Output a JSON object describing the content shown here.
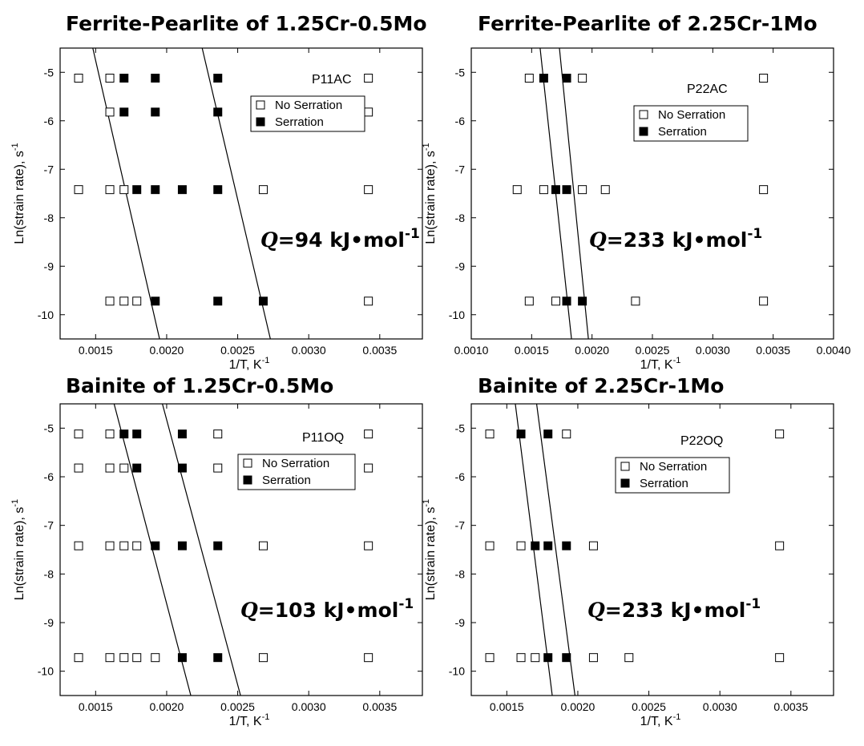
{
  "chart_data": [
    {
      "type": "scatter",
      "title": "Ferrite-Pearlite of 1.25Cr-0.5Mo",
      "sample_label": "P11AC",
      "activation_energy": {
        "symbol": "Q",
        "value": "=94 kJ•mol",
        "exponent": "-1"
      },
      "xlabel": "1/T, K",
      "xlabel_exp": "-1",
      "ylabel": "Ln(strain rate), s",
      "ylabel_exp": "-1",
      "xlim": [
        0.00125,
        0.0038
      ],
      "ylim": [
        -10.5,
        -4.5
      ],
      "xticks": [
        0.0015,
        0.002,
        0.0025,
        0.003,
        0.0035
      ],
      "xtick_labels": [
        "0.0015",
        "0.0020",
        "0.0025",
        "0.0030",
        "0.0035"
      ],
      "yticks": [
        -5,
        -6,
        -7,
        -8,
        -9,
        -10
      ],
      "ytick_labels": [
        "-5",
        "-6",
        "-7",
        "-8",
        "-9",
        "-10"
      ],
      "legend": {
        "position": "top-right",
        "entries": [
          "No Serration",
          "Serration"
        ]
      },
      "series": [
        {
          "name": "No Serration",
          "marker": "open-square",
          "points": [
            [
              0.00138,
              -5.12
            ],
            [
              0.0016,
              -5.12
            ],
            [
              0.00342,
              -5.12
            ],
            [
              0.0016,
              -5.82
            ],
            [
              0.00342,
              -5.82
            ],
            [
              0.00138,
              -7.42
            ],
            [
              0.0016,
              -7.42
            ],
            [
              0.0017,
              -7.42
            ],
            [
              0.00268,
              -7.42
            ],
            [
              0.00342,
              -7.42
            ],
            [
              0.0016,
              -9.72
            ],
            [
              0.0017,
              -9.72
            ],
            [
              0.00179,
              -9.72
            ],
            [
              0.00342,
              -9.72
            ]
          ]
        },
        {
          "name": "Serration",
          "marker": "filled-square",
          "points": [
            [
              0.0017,
              -5.12
            ],
            [
              0.00192,
              -5.12
            ],
            [
              0.00236,
              -5.12
            ],
            [
              0.0017,
              -5.82
            ],
            [
              0.00192,
              -5.82
            ],
            [
              0.00236,
              -5.82
            ],
            [
              0.00179,
              -7.42
            ],
            [
              0.00192,
              -7.42
            ],
            [
              0.00211,
              -7.42
            ],
            [
              0.00236,
              -7.42
            ],
            [
              0.00192,
              -9.72
            ],
            [
              0.00236,
              -9.72
            ],
            [
              0.00268,
              -9.72
            ]
          ]
        }
      ],
      "boundary_lines": [
        [
          [
            0.00148,
            -4.5
          ],
          [
            0.00195,
            -10.5
          ]
        ],
        [
          [
            0.00225,
            -4.5
          ],
          [
            0.00273,
            -10.5
          ]
        ]
      ]
    },
    {
      "type": "scatter",
      "title": "Ferrite-Pearlite of 2.25Cr-1Mo",
      "sample_label": "P22AC",
      "activation_energy": {
        "symbol": "Q",
        "value": "=233 kJ•mol",
        "exponent": "-1"
      },
      "xlabel": "1/T, K",
      "xlabel_exp": "-1",
      "ylabel": "Ln(strain rate), s",
      "ylabel_exp": "-1",
      "xlim": [
        0.001,
        0.004
      ],
      "ylim": [
        -10.5,
        -4.5
      ],
      "xticks": [
        0.001,
        0.0015,
        0.002,
        0.0025,
        0.003,
        0.0035,
        0.004
      ],
      "xtick_labels": [
        "0.0010",
        "0.0015",
        "0.0020",
        "0.0025",
        "0.0030",
        "0.0035",
        "0.0040"
      ],
      "yticks": [
        -5,
        -6,
        -7,
        -8,
        -9,
        -10
      ],
      "ytick_labels": [
        "-5",
        "-6",
        "-7",
        "-8",
        "-9",
        "-10"
      ],
      "legend": {
        "position": "top-right",
        "entries": [
          "No Serration",
          "Serration"
        ]
      },
      "series": [
        {
          "name": "No Serration",
          "marker": "open-square",
          "points": [
            [
              0.00148,
              -5.12
            ],
            [
              0.00192,
              -5.12
            ],
            [
              0.00342,
              -5.12
            ],
            [
              0.00138,
              -7.42
            ],
            [
              0.0016,
              -7.42
            ],
            [
              0.00192,
              -7.42
            ],
            [
              0.00211,
              -7.42
            ],
            [
              0.00342,
              -7.42
            ],
            [
              0.00148,
              -9.72
            ],
            [
              0.0017,
              -9.72
            ],
            [
              0.00236,
              -9.72
            ],
            [
              0.00342,
              -9.72
            ]
          ]
        },
        {
          "name": "Serration",
          "marker": "filled-square",
          "points": [
            [
              0.0016,
              -5.12
            ],
            [
              0.00179,
              -5.12
            ],
            [
              0.0017,
              -7.42
            ],
            [
              0.00179,
              -7.42
            ],
            [
              0.00179,
              -9.72
            ],
            [
              0.00192,
              -9.72
            ]
          ]
        }
      ],
      "boundary_lines": [
        [
          [
            0.00157,
            -4.5
          ],
          [
            0.00183,
            -10.5
          ]
        ],
        [
          [
            0.00173,
            -4.5
          ],
          [
            0.00197,
            -10.5
          ]
        ]
      ]
    },
    {
      "type": "scatter",
      "title": "Bainite of 1.25Cr-0.5Mo",
      "sample_label": "P11OQ",
      "activation_energy": {
        "symbol": "Q",
        "value": "=103 kJ•mol",
        "exponent": "-1"
      },
      "xlabel": "1/T, K",
      "xlabel_exp": "-1",
      "ylabel": "Ln(strain rate), s",
      "ylabel_exp": "-1",
      "xlim": [
        0.00125,
        0.0038
      ],
      "ylim": [
        -10.5,
        -4.5
      ],
      "xticks": [
        0.0015,
        0.002,
        0.0025,
        0.003,
        0.0035
      ],
      "xtick_labels": [
        "0.0015",
        "0.0020",
        "0.0025",
        "0.0030",
        "0.0035"
      ],
      "yticks": [
        -5,
        -6,
        -7,
        -8,
        -9,
        -10
      ],
      "ytick_labels": [
        "-5",
        "-6",
        "-7",
        "-8",
        "-9",
        "-10"
      ],
      "legend": {
        "position": "top-right",
        "entries": [
          "No Serration",
          "Serration"
        ]
      },
      "series": [
        {
          "name": "No Serration",
          "marker": "open-square",
          "points": [
            [
              0.00138,
              -5.12
            ],
            [
              0.0016,
              -5.12
            ],
            [
              0.00236,
              -5.12
            ],
            [
              0.00342,
              -5.12
            ],
            [
              0.00138,
              -5.82
            ],
            [
              0.0016,
              -5.82
            ],
            [
              0.0017,
              -5.82
            ],
            [
              0.00236,
              -5.82
            ],
            [
              0.00342,
              -5.82
            ],
            [
              0.00138,
              -7.42
            ],
            [
              0.0016,
              -7.42
            ],
            [
              0.0017,
              -7.42
            ],
            [
              0.00179,
              -7.42
            ],
            [
              0.00268,
              -7.42
            ],
            [
              0.00342,
              -7.42
            ],
            [
              0.00138,
              -9.72
            ],
            [
              0.0016,
              -9.72
            ],
            [
              0.0017,
              -9.72
            ],
            [
              0.00179,
              -9.72
            ],
            [
              0.00192,
              -9.72
            ],
            [
              0.00268,
              -9.72
            ],
            [
              0.00342,
              -9.72
            ]
          ]
        },
        {
          "name": "Serration",
          "marker": "filled-square",
          "points": [
            [
              0.0017,
              -5.12
            ],
            [
              0.00179,
              -5.12
            ],
            [
              0.00211,
              -5.12
            ],
            [
              0.00179,
              -5.82
            ],
            [
              0.00211,
              -5.82
            ],
            [
              0.00192,
              -7.42
            ],
            [
              0.00211,
              -7.42
            ],
            [
              0.00236,
              -7.42
            ],
            [
              0.00211,
              -9.72
            ],
            [
              0.00236,
              -9.72
            ]
          ]
        }
      ],
      "boundary_lines": [
        [
          [
            0.00163,
            -4.5
          ],
          [
            0.00217,
            -10.5
          ]
        ],
        [
          [
            0.00197,
            -4.5
          ],
          [
            0.00252,
            -10.5
          ]
        ]
      ]
    },
    {
      "type": "scatter",
      "title": "Bainite of 2.25Cr-1Mo",
      "sample_label": "P22OQ",
      "activation_energy": {
        "symbol": "Q",
        "value": "=233 kJ•mol",
        "exponent": "-1"
      },
      "xlabel": "1/T, K",
      "xlabel_exp": "-1",
      "ylabel": "Ln(strain rate), s",
      "ylabel_exp": "-1",
      "xlim": [
        0.00125,
        0.0038
      ],
      "ylim": [
        -10.5,
        -4.5
      ],
      "xticks": [
        0.0015,
        0.002,
        0.0025,
        0.003,
        0.0035
      ],
      "xtick_labels": [
        "0.0015",
        "0.0020",
        "0.0025",
        "0.0030",
        "0.0035"
      ],
      "yticks": [
        -5,
        -6,
        -7,
        -8,
        -9,
        -10
      ],
      "ytick_labels": [
        "-5",
        "-6",
        "-7",
        "-8",
        "-9",
        "-10"
      ],
      "legend": {
        "position": "top-right",
        "entries": [
          "No Serration",
          "Serration"
        ]
      },
      "series": [
        {
          "name": "No Serration",
          "marker": "open-square",
          "points": [
            [
              0.00138,
              -5.12
            ],
            [
              0.00192,
              -5.12
            ],
            [
              0.00342,
              -5.12
            ],
            [
              0.00138,
              -7.42
            ],
            [
              0.0016,
              -7.42
            ],
            [
              0.00211,
              -7.42
            ],
            [
              0.00342,
              -7.42
            ],
            [
              0.00138,
              -9.72
            ],
            [
              0.0016,
              -9.72
            ],
            [
              0.0017,
              -9.72
            ],
            [
              0.00211,
              -9.72
            ],
            [
              0.00236,
              -9.72
            ],
            [
              0.00342,
              -9.72
            ]
          ]
        },
        {
          "name": "Serration",
          "marker": "filled-square",
          "points": [
            [
              0.0016,
              -5.12
            ],
            [
              0.00179,
              -5.12
            ],
            [
              0.0017,
              -7.42
            ],
            [
              0.00179,
              -7.42
            ],
            [
              0.00192,
              -7.42
            ],
            [
              0.00179,
              -9.72
            ],
            [
              0.00192,
              -9.72
            ]
          ]
        }
      ],
      "boundary_lines": [
        [
          [
            0.00156,
            -4.5
          ],
          [
            0.00182,
            -10.5
          ]
        ],
        [
          [
            0.00171,
            -4.5
          ],
          [
            0.00198,
            -10.5
          ]
        ]
      ]
    }
  ],
  "colors": {
    "marker": "#000000",
    "axis": "#000000",
    "line": "#000000",
    "background": "#ffffff"
  }
}
